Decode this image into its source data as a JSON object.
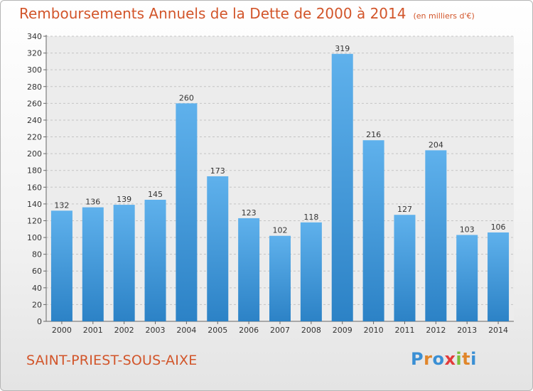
{
  "header": {
    "title": "Remboursements Annuels de la Dette de 2000 à 2014",
    "subtitle": "(en milliers d'€)"
  },
  "footer": {
    "commune": "SAINT-PRIEST-SOUS-AIXE",
    "logo_text": "Proxiti"
  },
  "colors": {
    "title": "#d2552a",
    "bar_top": "#5fb1ec",
    "bar_bottom": "#2c82c6",
    "logo_letters": [
      "#3a8fd4",
      "#e0862b",
      "#3a8fd4",
      "#e23b3b",
      "#7bbf3a",
      "#e0862b",
      "#3a8fd4"
    ]
  },
  "chart_data": {
    "type": "bar",
    "title": "Remboursements Annuels de la Dette de 2000 à 2014",
    "subtitle": "(en milliers d'€)",
    "xlabel": "",
    "ylabel": "",
    "categories": [
      "2000",
      "2001",
      "2002",
      "2003",
      "2004",
      "2005",
      "2006",
      "2007",
      "2008",
      "2009",
      "2010",
      "2011",
      "2012",
      "2013",
      "2014"
    ],
    "values": [
      132,
      136,
      139,
      145,
      260,
      173,
      123,
      102,
      118,
      319,
      216,
      127,
      204,
      103,
      106
    ],
    "ylim": [
      0,
      340
    ],
    "yticks": [
      0,
      20,
      40,
      60,
      80,
      100,
      120,
      140,
      160,
      180,
      200,
      220,
      240,
      260,
      280,
      300,
      320,
      340
    ],
    "grid": true,
    "data_labels": true
  }
}
